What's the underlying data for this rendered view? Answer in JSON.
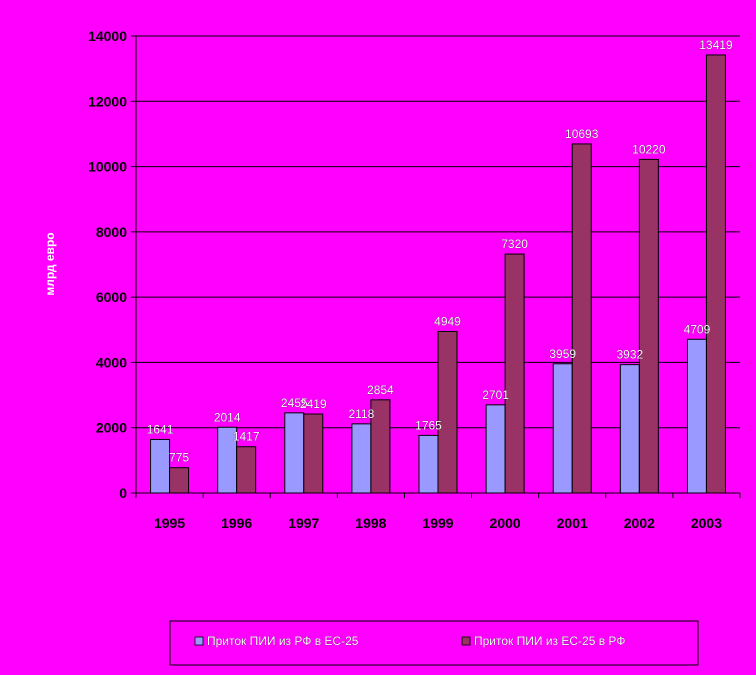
{
  "chart_data": {
    "type": "bar",
    "categories": [
      "1995",
      "1996",
      "1997",
      "1998",
      "1999",
      "2000",
      "2001",
      "2002",
      "2003"
    ],
    "series": [
      {
        "name": "Приток ПИИ из РФ  в ЕС-25",
        "values": [
          1641,
          2014,
          2455,
          2118,
          1765,
          2701,
          3959,
          3932,
          4709
        ],
        "color": "#9999FF"
      },
      {
        "name": "Приток ПИИ из ЕС-25 в РФ",
        "values": [
          775,
          1417,
          2419,
          2854,
          4949,
          7320,
          10693,
          10220,
          13419
        ],
        "color": "#993366"
      }
    ],
    "ylabel": "млрд евро",
    "ylim": [
      0,
      14000
    ],
    "yticks": [
      0,
      2000,
      4000,
      6000,
      8000,
      10000,
      12000,
      14000
    ],
    "grid": true,
    "legend_position": "bottom",
    "colors": {
      "background": "#FF00FF",
      "gridline": "#000000",
      "data_label": "#FFFFFF"
    }
  }
}
